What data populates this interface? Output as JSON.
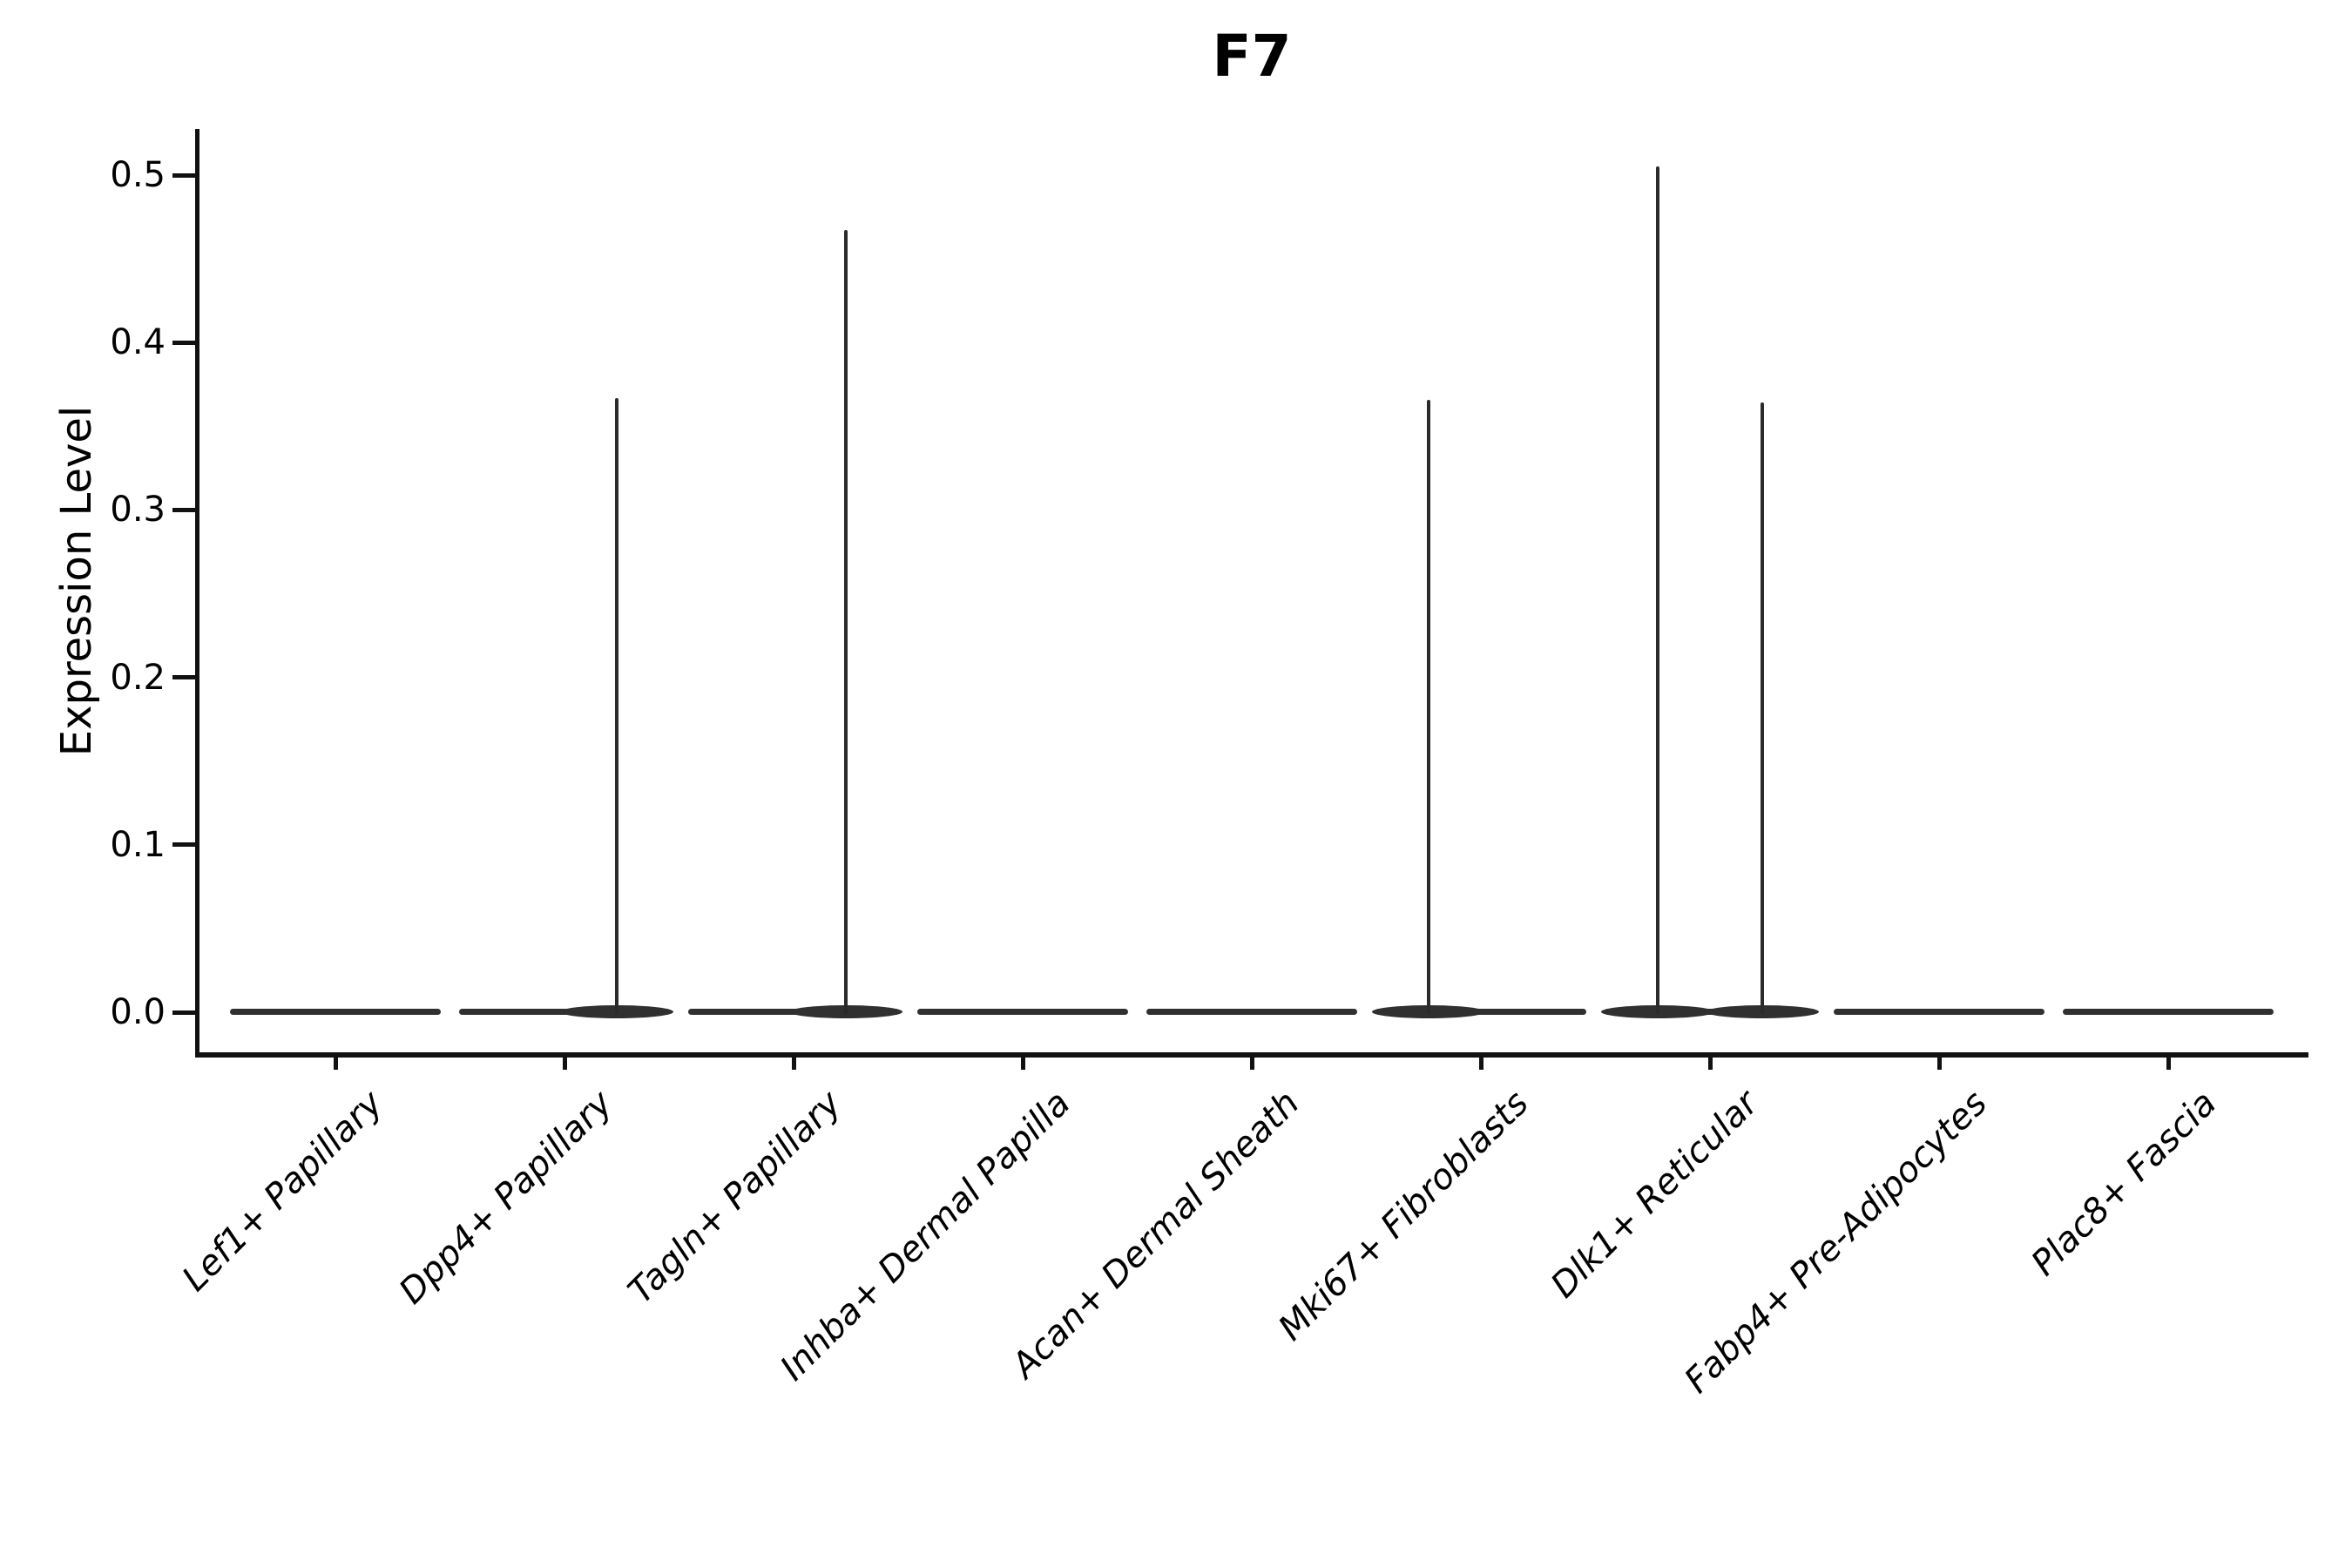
{
  "title": "F7",
  "ylabel": "Expression Level",
  "colors": {
    "background": "#ffffff",
    "axis": "#111111",
    "violin": "#303030",
    "text": "#000000"
  },
  "chart_data": {
    "type": "violin",
    "title": "F7",
    "xlabel": "",
    "ylabel": "Expression Level",
    "grid": false,
    "legend": null,
    "ylim": [
      0,
      0.527
    ],
    "ytick_labels": [
      "0.0",
      "0.1",
      "0.2",
      "0.3",
      "0.4",
      "0.5"
    ],
    "ytick_values": [
      0.0,
      0.1,
      0.2,
      0.3,
      0.4,
      0.5
    ],
    "categories": [
      "Lef1+ Papillary",
      "Dpp4+ Papillary",
      "Tagln+ Papillary",
      "Inhba+ Dermal Papilla",
      "Acan+ Dermal Sheath",
      "Mki67+ Fibroblasts",
      "Dlk1+ Reticular",
      "Fabp4+ Pre-Adipocytes",
      "Plac8+ Fascia"
    ],
    "violins": [
      {
        "category": "Lef1+ Papillary",
        "base_value": 0.0,
        "spikes": []
      },
      {
        "category": "Dpp4+ Papillary",
        "base_value": 0.0,
        "spikes": [
          {
            "offset_frac": 0.228,
            "max_value": 0.367
          }
        ]
      },
      {
        "category": "Tagln+ Papillary",
        "base_value": 0.0,
        "spikes": [
          {
            "offset_frac": 0.228,
            "max_value": 0.467
          }
        ]
      },
      {
        "category": "Inhba+ Dermal Papilla",
        "base_value": 0.0,
        "spikes": []
      },
      {
        "category": "Acan+ Dermal Sheath",
        "base_value": 0.0,
        "spikes": []
      },
      {
        "category": "Mki67+ Fibroblasts",
        "base_value": 0.0,
        "spikes": [
          {
            "offset_frac": -0.228,
            "max_value": 0.366
          }
        ]
      },
      {
        "category": "Dlk1+ Reticular",
        "base_value": 0.0,
        "spikes": [
          {
            "offset_frac": -0.228,
            "max_value": 0.505
          },
          {
            "offset_frac": 0.228,
            "max_value": 0.364
          }
        ]
      },
      {
        "category": "Fabp4+ Pre-Adipocytes",
        "base_value": 0.0,
        "spikes": []
      },
      {
        "category": "Plac8+ Fascia",
        "base_value": 0.0,
        "spikes": []
      }
    ]
  }
}
